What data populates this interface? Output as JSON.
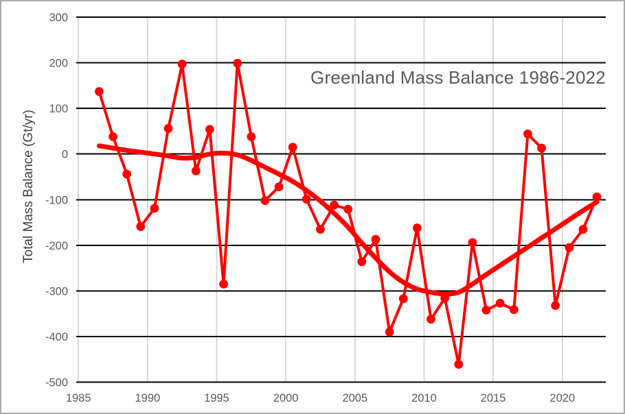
{
  "frame": {
    "border_color": "#ABABAB",
    "background_color": "#FFFFFF"
  },
  "chart_data": {
    "type": "line",
    "title": "Greenland Mass Balance 1986-2022",
    "xlabel": "",
    "ylabel": "Total Mass Balance (Gt/yr)",
    "x": [
      1986,
      1987,
      1988,
      1989,
      1990,
      1991,
      1992,
      1993,
      1994,
      1995,
      1996,
      1997,
      1998,
      1999,
      2000,
      2001,
      2002,
      2003,
      2004,
      2005,
      2006,
      2007,
      2008,
      2009,
      2010,
      2011,
      2012,
      2013,
      2014,
      2015,
      2016,
      2017,
      2018,
      2019,
      2020,
      2021,
      2022
    ],
    "series": [
      {
        "name": "annual-mass-balance",
        "style": "line-with-markers",
        "color": "#FF0000",
        "values": [
          137,
          38,
          -44,
          -159,
          -119,
          56,
          197,
          -37,
          54,
          -285,
          199,
          38,
          -102,
          -72,
          15,
          -99,
          -165,
          -112,
          -121,
          -236,
          -187,
          -390,
          -317,
          -162,
          -362,
          -316,
          -461,
          -194,
          -342,
          -327,
          -341,
          44,
          13,
          -332,
          -205,
          -165,
          -94
        ]
      },
      {
        "name": "smoothed-trend",
        "style": "smooth-line",
        "color": "#FF0000",
        "values": [
          18,
          13,
          8,
          4,
          0,
          -4,
          -9,
          -7,
          0,
          2,
          -2,
          -14,
          -29,
          -44,
          -60,
          -80,
          -103,
          -130,
          -160,
          -195,
          -228,
          -258,
          -281,
          -296,
          -303,
          -307,
          -303,
          -285,
          -264,
          -244,
          -224,
          -204,
          -184,
          -164,
          -144,
          -124,
          -105
        ]
      }
    ],
    "xlim": [
      1985,
      2023
    ],
    "ylim": [
      -500,
      300
    ],
    "xticks": [
      1985,
      1990,
      1995,
      2000,
      2005,
      2010,
      2015,
      2020
    ],
    "yticks": [
      300,
      200,
      100,
      0,
      -100,
      -200,
      -300,
      -400,
      -500
    ],
    "grid": {
      "horizontal": "on",
      "horizontal_color": "#000000",
      "vertical": "on",
      "vertical_color": "#D9D9D9"
    },
    "legend": "none",
    "tick_label_color": "#595959",
    "axis_title_color": "#404040",
    "title_color": "#595959"
  }
}
